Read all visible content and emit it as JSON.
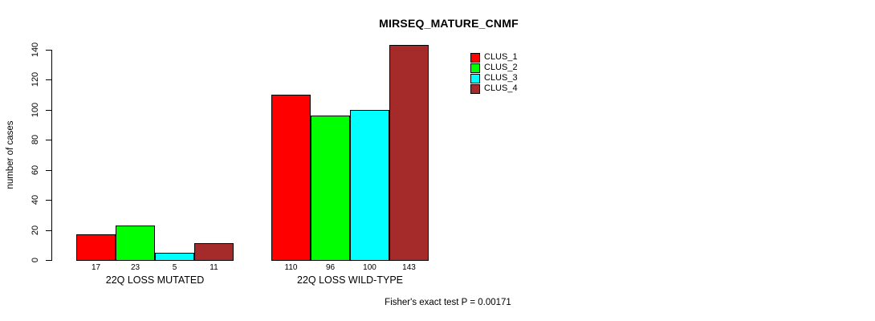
{
  "chart_data": {
    "type": "bar",
    "title": "MIRSEQ_MATURE_CNMF",
    "ylabel": "number of cases",
    "xlabel": "",
    "ylim": [
      0,
      140
    ],
    "yticks": [
      0,
      20,
      40,
      60,
      80,
      100,
      120,
      140
    ],
    "grid": false,
    "legend_position": "top-right",
    "show_bar_values": true,
    "categories": [
      "22Q LOSS MUTATED",
      "22Q LOSS WILD-TYPE"
    ],
    "series": [
      {
        "name": "CLUS_1",
        "color": "#ff0000",
        "values": [
          17,
          110
        ]
      },
      {
        "name": "CLUS_2",
        "color": "#00ff00",
        "values": [
          23,
          96
        ]
      },
      {
        "name": "CLUS_3",
        "color": "#00ffff",
        "values": [
          5,
          100
        ]
      },
      {
        "name": "CLUS_4",
        "color": "#a52a2a",
        "values": [
          11,
          143
        ]
      }
    ],
    "annotation": "Fisher's exact test P = 0.00171"
  }
}
